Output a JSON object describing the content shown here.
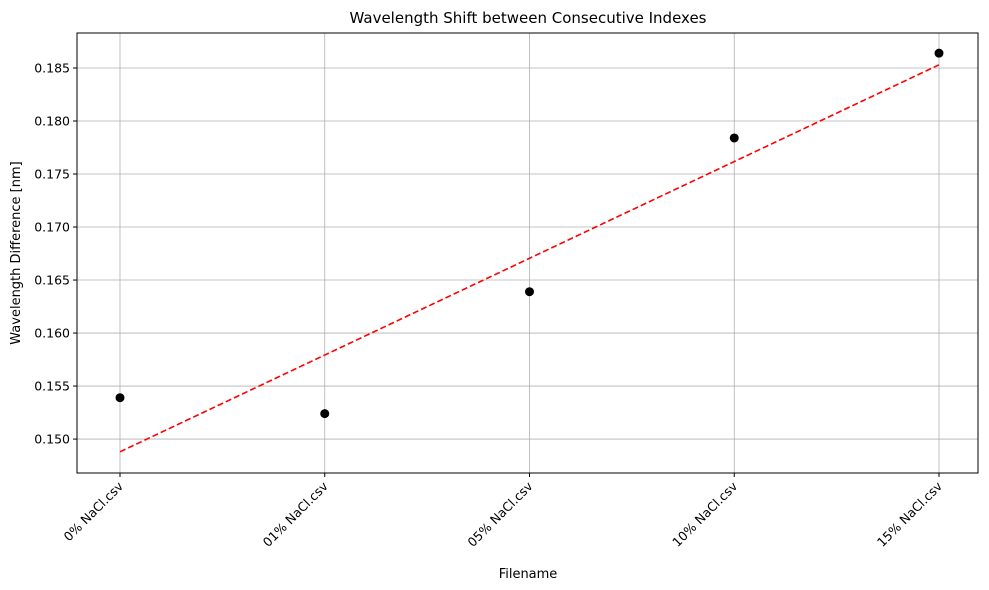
{
  "chart_data": {
    "type": "scatter",
    "title": "Wavelength Shift between Consecutive Indexes",
    "xlabel": "Filename",
    "ylabel": "Wavelength Difference [nm]",
    "categories": [
      "0% NaCl.csv",
      "01% NaCl.csv",
      "05% NaCl.csv",
      "10% NaCl.csv",
      "15% NaCl.csv"
    ],
    "series": [
      {
        "values": [
          0.1539,
          0.1524,
          0.1639,
          0.1784,
          0.1864
        ],
        "marker": "circle",
        "color": "#000000"
      }
    ],
    "trendline": {
      "style": "dashed",
      "color": "#ff0000",
      "start": 0.1488,
      "end": 0.1853
    },
    "yticks": [
      "0.150",
      "0.155",
      "0.160",
      "0.165",
      "0.170",
      "0.175",
      "0.180",
      "0.185"
    ],
    "ylim": [
      0.1468,
      0.1883
    ],
    "grid": true
  }
}
